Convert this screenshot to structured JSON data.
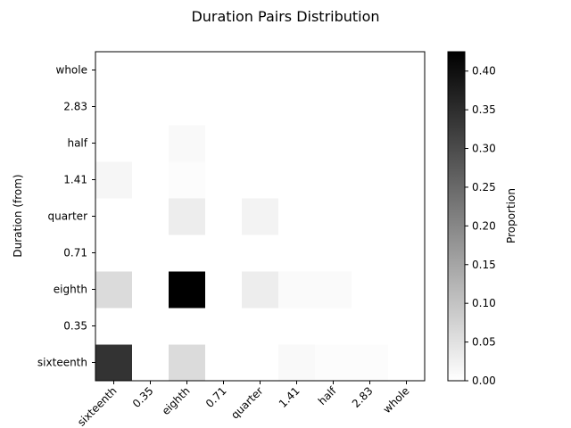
{
  "chart_data": {
    "type": "heatmap",
    "title": "Duration Pairs Distribution",
    "xlabel": "",
    "ylabel": "Duration (from)",
    "x_categories": [
      "sixteenth",
      "0.35",
      "eighth",
      "0.71",
      "quarter",
      "1.41",
      "half",
      "2.83",
      "whole"
    ],
    "y_categories": [
      "sixteenth",
      "0.35",
      "eighth",
      "0.71",
      "quarter",
      "1.41",
      "half",
      "2.83",
      "whole"
    ],
    "colormap": "gray_r",
    "colorbar": {
      "label": "Proportion",
      "range": [
        0,
        0.425
      ],
      "ticks": [
        "0.00",
        "0.05",
        "0.10",
        "0.15",
        "0.20",
        "0.25",
        "0.30",
        "0.35",
        "0.40"
      ]
    },
    "values": [
      [
        0.34,
        0,
        0.06,
        0,
        0,
        0.01,
        0.005,
        0.005,
        0
      ],
      [
        0,
        0,
        0,
        0,
        0,
        0,
        0,
        0,
        0
      ],
      [
        0.06,
        0,
        0.425,
        0,
        0.03,
        0.008,
        0.008,
        0,
        0
      ],
      [
        0,
        0,
        0,
        0,
        0,
        0,
        0,
        0,
        0
      ],
      [
        0,
        0,
        0.03,
        0,
        0.02,
        0,
        0,
        0,
        0
      ],
      [
        0.015,
        0,
        0.005,
        0,
        0,
        0,
        0,
        0,
        0
      ],
      [
        0,
        0,
        0.01,
        0,
        0,
        0,
        0,
        0,
        0
      ],
      [
        0,
        0,
        0,
        0,
        0,
        0,
        0,
        0,
        0
      ],
      [
        0,
        0,
        0,
        0,
        0,
        0,
        0,
        0,
        0
      ]
    ],
    "grid": false
  }
}
